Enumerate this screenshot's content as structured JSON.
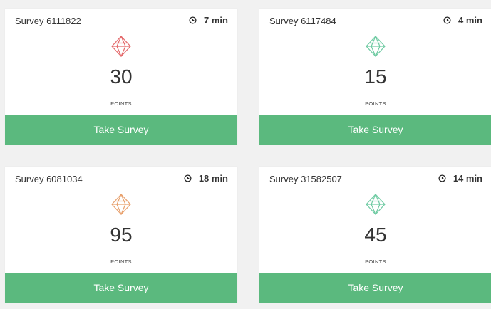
{
  "surveys": [
    {
      "title": "Survey 6111822",
      "time": "7 min",
      "points": "30",
      "points_label": "POINTS",
      "button": "Take Survey",
      "gem_color": "#e4686a"
    },
    {
      "title": "Survey 6117484",
      "time": "4 min",
      "points": "15",
      "points_label": "POINTS",
      "button": "Take Survey",
      "gem_color": "#6fcba3"
    },
    {
      "title": "Survey 6081034",
      "time": "18 min",
      "points": "95",
      "points_label": "POINTS",
      "button": "Take Survey",
      "gem_color": "#e8a06c"
    },
    {
      "title": "Survey 31582507",
      "time": "14 min",
      "points": "45",
      "points_label": "POINTS",
      "button": "Take Survey",
      "gem_color": "#6fcba3"
    }
  ]
}
